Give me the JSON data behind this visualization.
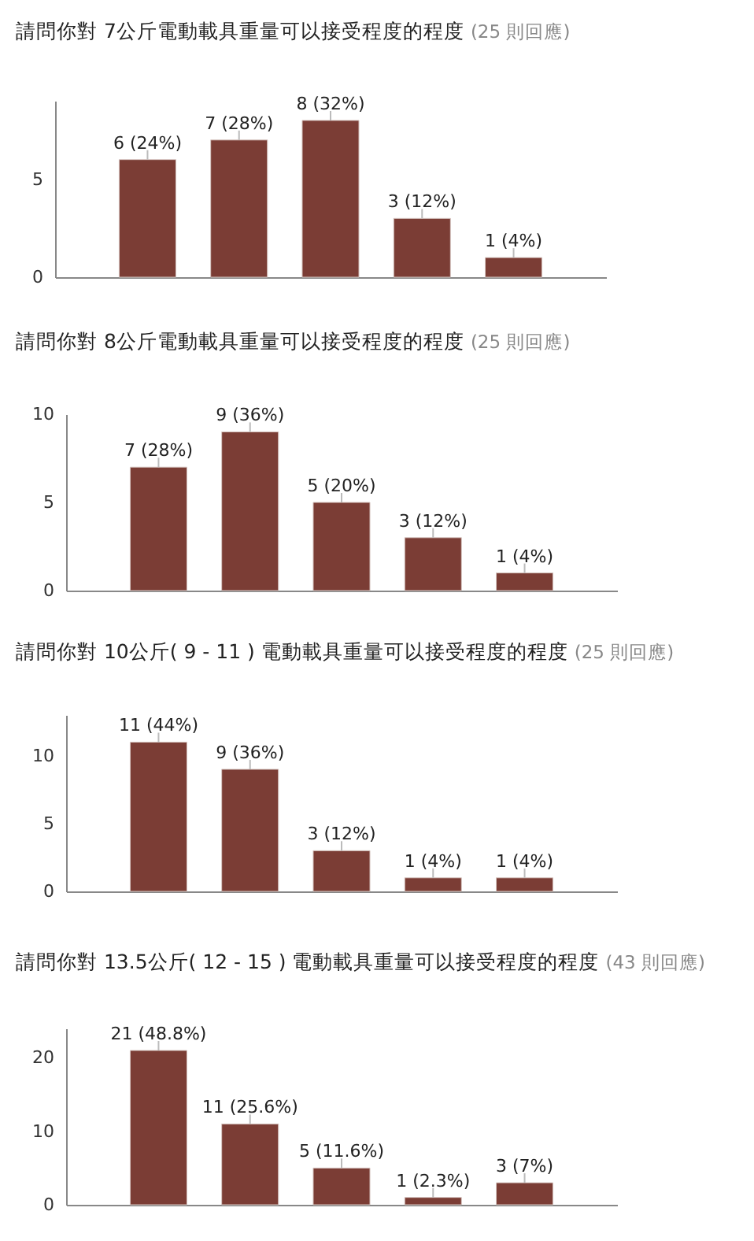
{
  "chart_data": [
    {
      "type": "bar",
      "title": "請問你對 7公斤電動載具重量可以接受程度的程度",
      "subtitle": "(25 則回應)",
      "categories": [
        null,
        null,
        null,
        null,
        null
      ],
      "values": [
        6,
        7,
        8,
        3,
        1
      ],
      "value_labels": [
        "6 (24%)",
        "7 (28%)",
        "8 (32%)",
        "3 (12%)",
        "1 (4%)"
      ],
      "color": "#7b3d35",
      "ylim": [
        0,
        9
      ],
      "yticks": [
        0,
        5
      ],
      "tick_labels": "y"
    },
    {
      "type": "bar",
      "title": "請問你對 8公斤電動載具重量可以接受程度的程度",
      "subtitle": "(25 則回應)",
      "categories": [
        null,
        null,
        null,
        null,
        null
      ],
      "values": [
        7,
        9,
        5,
        3,
        1
      ],
      "value_labels": [
        "7 (28%)",
        "9 (36%)",
        "5 (20%)",
        "3 (12%)",
        "1 (4%)"
      ],
      "color": "#7b3d35",
      "ylim": [
        0,
        10
      ],
      "yticks": [
        0,
        5,
        10
      ],
      "tick_labels": "y"
    },
    {
      "type": "bar",
      "title": "請問你對 10公斤( 9 - 11 ) 電動載具重量可以接受程度的程度",
      "subtitle": "(25 則回應)",
      "categories": [
        null,
        null,
        null,
        null,
        null
      ],
      "values": [
        11,
        9,
        3,
        1,
        1
      ],
      "value_labels": [
        "11 (44%)",
        "9 (36%)",
        "3 (12%)",
        "1 (4%)",
        "1 (4%)"
      ],
      "color": "#7b3d35",
      "ylim": [
        0,
        13
      ],
      "yticks": [
        0,
        5,
        10
      ],
      "tick_labels": "y"
    },
    {
      "type": "bar",
      "title": "請問你對 13.5公斤( 12 - 15 ) 電動載具重量可以接受程度的程度",
      "subtitle": "(43 則回應)",
      "categories": [
        null,
        null,
        null,
        null,
        null
      ],
      "values": [
        21,
        11,
        5,
        1,
        3
      ],
      "value_labels": [
        "21 (48.8%)",
        "11 (25.6%)",
        "5 (11.6%)",
        "1 (2.3%)",
        "3 (7%)"
      ],
      "color": "#7b3d35",
      "ylim": [
        0,
        24
      ],
      "yticks": [
        0,
        10,
        20
      ],
      "tick_labels": "y"
    }
  ]
}
